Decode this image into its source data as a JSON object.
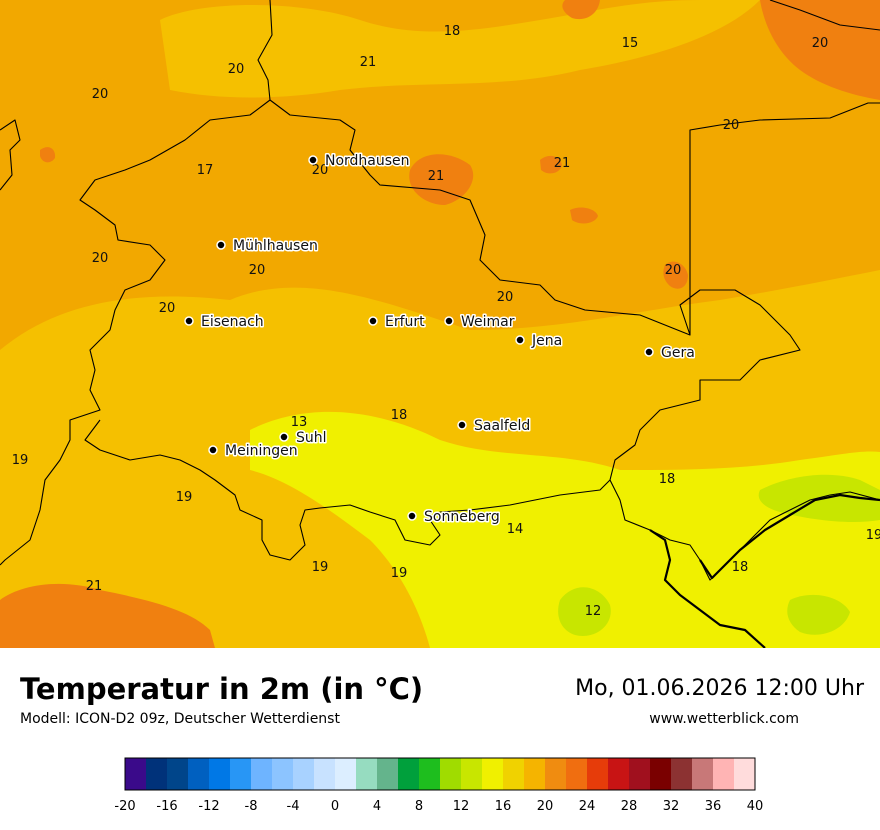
{
  "title": "Temperatur in 2m (in °C)",
  "subtitle": "Modell: ICON-D2 09z, Deutscher Wetterdienst",
  "datetime": "Mo, 01.06.2026 12:00 Uhr",
  "website": "www.wetterblick.com",
  "colors": {
    "t12": "#c8e600",
    "t14": "#f0f000",
    "t18": "#f5c000",
    "t20": "#f2a800",
    "t21": "#f08010",
    "border": "#000000"
  },
  "cities": [
    {
      "name": "Nordhausen"
    },
    {
      "name": "Mühlhausen"
    },
    {
      "name": "Eisenach"
    },
    {
      "name": "Erfurt"
    },
    {
      "name": "Weimar"
    },
    {
      "name": "Jena"
    },
    {
      "name": "Gera"
    },
    {
      "name": "Suhl"
    },
    {
      "name": "Meiningen"
    },
    {
      "name": "Saalfeld"
    },
    {
      "name": "Sonneberg"
    }
  ],
  "isolabels": [
    "18",
    "20",
    "21",
    "15",
    "20",
    "20",
    "20",
    "17",
    "20",
    "21",
    "20",
    "20",
    "20",
    "20",
    "21",
    "20",
    "13",
    "18",
    "19",
    "19",
    "18",
    "14",
    "19",
    "19",
    "21",
    "12",
    "18",
    "19"
  ],
  "legend": {
    "colors": [
      "#3a0a8a",
      "#00327a",
      "#00458a",
      "#0060c0",
      "#0078e6",
      "#2896f5",
      "#6eb4ff",
      "#8cc4ff",
      "#a8d2ff",
      "#c8e2ff",
      "#dceeff",
      "#96dcc0",
      "#64b48c",
      "#00a03c",
      "#1ebe1e",
      "#a0dc00",
      "#c8e600",
      "#f0f000",
      "#f0d200",
      "#f5b400",
      "#f08c10",
      "#f06e10",
      "#e63c0a",
      "#c81414",
      "#a0101e",
      "#7a0000",
      "#8c3232",
      "#c87878",
      "#ffb4b4",
      "#ffdcdc"
    ],
    "ticks": [
      "-20",
      "-16",
      "-12",
      "-8",
      "-4",
      "0",
      "4",
      "8",
      "12",
      "16",
      "20",
      "24",
      "28",
      "32",
      "36",
      "40"
    ]
  }
}
